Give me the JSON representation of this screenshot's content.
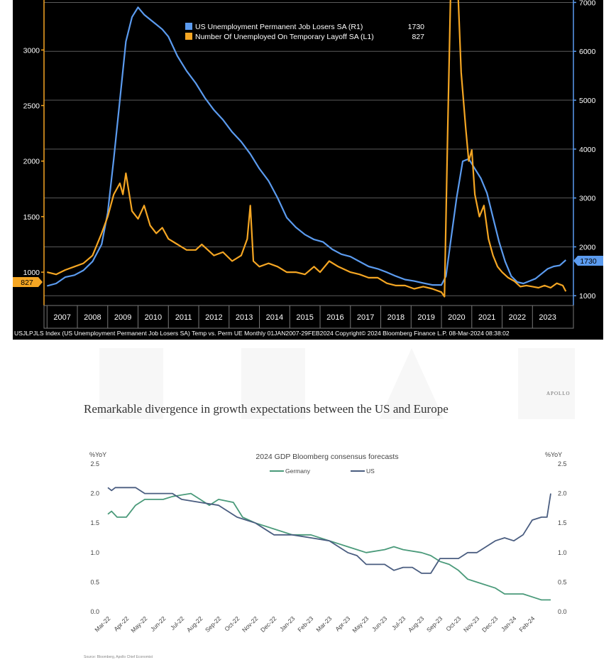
{
  "chart_data": [
    {
      "type": "line",
      "title": "",
      "legend": {
        "placement": "top-center",
        "entries": [
          {
            "label": "US Unemployment Permanent Job Losers SA (R1)",
            "last": "1730",
            "color": "#5b9bef"
          },
          {
            "label": "Number Of Unemployed On Temporary Layoff SA  (L1)",
            "last": "827",
            "color": "#f5a623"
          }
        ]
      },
      "left_axis": {
        "min": 700,
        "max": 3450,
        "ticks": [
          1000,
          1500,
          2000,
          2500,
          3000
        ]
      },
      "right_axis": {
        "min": 800,
        "max": 7050,
        "ticks": [
          1000,
          2000,
          3000,
          4000,
          5000,
          6000,
          7000
        ]
      },
      "x_axis": {
        "min": 2006.9,
        "max": 2024.35,
        "ticks": [
          "2007",
          "2008",
          "2009",
          "2010",
          "2011",
          "2012",
          "2013",
          "2014",
          "2015",
          "2016",
          "2017",
          "2018",
          "2019",
          "2020",
          "2021",
          "2022",
          "2023"
        ]
      },
      "grid": true,
      "last_value_labels": {
        "left": "827",
        "right": "1730"
      },
      "footer": "USJLPJLS Index (US Unemployment Permanent Job Losers SA) Temp vs. Perm UE  Monthly 01JAN2007-29FEB2024  Copyright© 2024 Bloomberg Finance L.P.  08-Mar-2024 08:38:02",
      "series": [
        {
          "name": "US Unemployment Permanent Job Losers SA (R1)",
          "axis": "right",
          "color": "#5b9bef",
          "points": [
            [
              2007.0,
              1200
            ],
            [
              2007.3,
              1250
            ],
            [
              2007.6,
              1380
            ],
            [
              2007.9,
              1420
            ],
            [
              2008.2,
              1520
            ],
            [
              2008.5,
              1700
            ],
            [
              2008.8,
              2050
            ],
            [
              2009.0,
              2700
            ],
            [
              2009.2,
              3800
            ],
            [
              2009.4,
              5000
            ],
            [
              2009.6,
              6200
            ],
            [
              2009.8,
              6700
            ],
            [
              2010.0,
              6900
            ],
            [
              2010.2,
              6750
            ],
            [
              2010.4,
              6650
            ],
            [
              2010.6,
              6550
            ],
            [
              2010.8,
              6450
            ],
            [
              2011.0,
              6300
            ],
            [
              2011.3,
              5900
            ],
            [
              2011.6,
              5600
            ],
            [
              2011.9,
              5350
            ],
            [
              2012.2,
              5050
            ],
            [
              2012.5,
              4800
            ],
            [
              2012.8,
              4600
            ],
            [
              2013.1,
              4350
            ],
            [
              2013.4,
              4150
            ],
            [
              2013.7,
              3900
            ],
            [
              2014.0,
              3600
            ],
            [
              2014.3,
              3350
            ],
            [
              2014.6,
              3000
            ],
            [
              2014.9,
              2600
            ],
            [
              2015.2,
              2400
            ],
            [
              2015.5,
              2250
            ],
            [
              2015.8,
              2150
            ],
            [
              2016.1,
              2100
            ],
            [
              2016.4,
              1950
            ],
            [
              2016.7,
              1850
            ],
            [
              2017.0,
              1800
            ],
            [
              2017.3,
              1700
            ],
            [
              2017.6,
              1600
            ],
            [
              2017.9,
              1550
            ],
            [
              2018.2,
              1480
            ],
            [
              2018.5,
              1400
            ],
            [
              2018.8,
              1330
            ],
            [
              2019.1,
              1300
            ],
            [
              2019.4,
              1260
            ],
            [
              2019.7,
              1220
            ],
            [
              2020.0,
              1220
            ],
            [
              2020.15,
              1400
            ],
            [
              2020.3,
              2100
            ],
            [
              2020.5,
              3000
            ],
            [
              2020.7,
              3750
            ],
            [
              2020.9,
              3800
            ],
            [
              2021.1,
              3600
            ],
            [
              2021.3,
              3400
            ],
            [
              2021.5,
              3100
            ],
            [
              2021.7,
              2600
            ],
            [
              2021.9,
              2100
            ],
            [
              2022.1,
              1700
            ],
            [
              2022.3,
              1400
            ],
            [
              2022.5,
              1280
            ],
            [
              2022.7,
              1250
            ],
            [
              2022.9,
              1300
            ],
            [
              2023.1,
              1350
            ],
            [
              2023.3,
              1450
            ],
            [
              2023.5,
              1550
            ],
            [
              2023.7,
              1600
            ],
            [
              2023.9,
              1620
            ],
            [
              2024.1,
              1730
            ]
          ]
        },
        {
          "name": "Number Of Unemployed On Temporary Layoff SA  (L1)",
          "axis": "left",
          "color": "#f5a623",
          "points": [
            [
              2007.0,
              1000
            ],
            [
              2007.3,
              980
            ],
            [
              2007.6,
              1020
            ],
            [
              2007.9,
              1050
            ],
            [
              2008.2,
              1080
            ],
            [
              2008.5,
              1150
            ],
            [
              2008.8,
              1350
            ],
            [
              2009.0,
              1500
            ],
            [
              2009.2,
              1700
            ],
            [
              2009.4,
              1800
            ],
            [
              2009.5,
              1700
            ],
            [
              2009.6,
              1890
            ],
            [
              2009.8,
              1550
            ],
            [
              2010.0,
              1480
            ],
            [
              2010.2,
              1600
            ],
            [
              2010.4,
              1420
            ],
            [
              2010.6,
              1350
            ],
            [
              2010.8,
              1400
            ],
            [
              2011.0,
              1300
            ],
            [
              2011.3,
              1250
            ],
            [
              2011.6,
              1200
            ],
            [
              2011.9,
              1200
            ],
            [
              2012.1,
              1250
            ],
            [
              2012.3,
              1200
            ],
            [
              2012.5,
              1150
            ],
            [
              2012.8,
              1180
            ],
            [
              2013.1,
              1100
            ],
            [
              2013.4,
              1150
            ],
            [
              2013.6,
              1300
            ],
            [
              2013.7,
              1600
            ],
            [
              2013.8,
              1100
            ],
            [
              2014.0,
              1050
            ],
            [
              2014.3,
              1080
            ],
            [
              2014.6,
              1050
            ],
            [
              2014.9,
              1000
            ],
            [
              2015.2,
              1000
            ],
            [
              2015.5,
              980
            ],
            [
              2015.8,
              1050
            ],
            [
              2016.0,
              1000
            ],
            [
              2016.3,
              1100
            ],
            [
              2016.6,
              1050
            ],
            [
              2017.0,
              1000
            ],
            [
              2017.3,
              980
            ],
            [
              2017.6,
              950
            ],
            [
              2017.9,
              950
            ],
            [
              2018.2,
              900
            ],
            [
              2018.5,
              880
            ],
            [
              2018.8,
              880
            ],
            [
              2019.1,
              850
            ],
            [
              2019.4,
              870
            ],
            [
              2019.7,
              850
            ],
            [
              2020.0,
              820
            ],
            [
              2020.1,
              780
            ],
            [
              2020.2,
              2200
            ],
            [
              2020.3,
              3500
            ],
            [
              2020.45,
              3500
            ],
            [
              2020.55,
              3500
            ],
            [
              2020.65,
              2800
            ],
            [
              2020.8,
              2300
            ],
            [
              2020.9,
              2000
            ],
            [
              2021.0,
              2100
            ],
            [
              2021.1,
              1700
            ],
            [
              2021.25,
              1500
            ],
            [
              2021.4,
              1600
            ],
            [
              2021.55,
              1300
            ],
            [
              2021.7,
              1150
            ],
            [
              2021.85,
              1050
            ],
            [
              2022.0,
              1000
            ],
            [
              2022.2,
              950
            ],
            [
              2022.4,
              920
            ],
            [
              2022.6,
              870
            ],
            [
              2022.8,
              880
            ],
            [
              2023.0,
              870
            ],
            [
              2023.2,
              860
            ],
            [
              2023.4,
              880
            ],
            [
              2023.6,
              860
            ],
            [
              2023.8,
              900
            ],
            [
              2024.0,
              880
            ],
            [
              2024.1,
              827
            ]
          ]
        }
      ]
    },
    {
      "type": "line",
      "title": "Remarkable divergence in growth expectations between the US and Europe",
      "subtitle": "2024 GDP Bloomberg consensus forecasts",
      "brand": "APOLLO",
      "ylabel_left": "%YoY",
      "ylabel_right": "%YoY",
      "ylim": [
        0,
        2.5
      ],
      "yticks": [
        "0.0",
        "0.5",
        "1.0",
        "1.5",
        "2.0",
        "2.5"
      ],
      "grid": false,
      "legend": {
        "placement": "top-center"
      },
      "xlim": [
        0,
        24
      ],
      "categories": [
        "Mar-22",
        "Apr-22",
        "May-22",
        "Jun-22",
        "Jul-22",
        "Aug-22",
        "Sep-22",
        "Oct-22",
        "Nov-22",
        "Dec-22",
        "Jan-23",
        "Feb-23",
        "Mar-23",
        "Apr-23",
        "May-23",
        "Jun-23",
        "Jul-23",
        "Aug-23",
        "Sep-23",
        "Oct-23",
        "Nov-23",
        "Dec-23",
        "Jan-24",
        "Feb-24"
      ],
      "source": "Source: Bloomberg, Apollo Chief Economist",
      "series": [
        {
          "name": "Germany",
          "color": "#4a9a7a",
          "points": [
            [
              0,
              1.65
            ],
            [
              0.2,
              1.7
            ],
            [
              0.5,
              1.6
            ],
            [
              1.0,
              1.6
            ],
            [
              1.5,
              1.8
            ],
            [
              2.0,
              1.9
            ],
            [
              3.0,
              1.9
            ],
            [
              3.5,
              1.95
            ],
            [
              4.5,
              2.0
            ],
            [
              5.0,
              1.9
            ],
            [
              5.5,
              1.8
            ],
            [
              6.0,
              1.9
            ],
            [
              6.8,
              1.85
            ],
            [
              7.3,
              1.6
            ],
            [
              8.0,
              1.5
            ],
            [
              9.0,
              1.4
            ],
            [
              10.0,
              1.3
            ],
            [
              11.0,
              1.3
            ],
            [
              12.0,
              1.2
            ],
            [
              12.5,
              1.15
            ],
            [
              13.0,
              1.1
            ],
            [
              13.5,
              1.05
            ],
            [
              14.0,
              1.0
            ],
            [
              15.0,
              1.05
            ],
            [
              15.5,
              1.1
            ],
            [
              16.0,
              1.05
            ],
            [
              17.0,
              1.0
            ],
            [
              17.5,
              0.95
            ],
            [
              18.0,
              0.85
            ],
            [
              18.5,
              0.8
            ],
            [
              19.0,
              0.7
            ],
            [
              19.5,
              0.55
            ],
            [
              20.0,
              0.5
            ],
            [
              21.0,
              0.4
            ],
            [
              21.5,
              0.3
            ],
            [
              22.5,
              0.3
            ],
            [
              23.0,
              0.25
            ],
            [
              23.5,
              0.2
            ],
            [
              24.0,
              0.2
            ]
          ]
        },
        {
          "name": "US",
          "color": "#4a5d80",
          "points": [
            [
              0,
              2.1
            ],
            [
              0.2,
              2.05
            ],
            [
              0.4,
              2.1
            ],
            [
              1.5,
              2.1
            ],
            [
              2.0,
              2.0
            ],
            [
              3.5,
              2.0
            ],
            [
              4.0,
              1.9
            ],
            [
              5.0,
              1.85
            ],
            [
              6.0,
              1.8
            ],
            [
              7.0,
              1.6
            ],
            [
              8.0,
              1.5
            ],
            [
              9.0,
              1.3
            ],
            [
              10.0,
              1.3
            ],
            [
              11.0,
              1.25
            ],
            [
              12.0,
              1.2
            ],
            [
              12.5,
              1.1
            ],
            [
              13.0,
              1.0
            ],
            [
              13.5,
              0.95
            ],
            [
              14.0,
              0.8
            ],
            [
              15.0,
              0.8
            ],
            [
              15.5,
              0.7
            ],
            [
              16.0,
              0.75
            ],
            [
              16.5,
              0.75
            ],
            [
              17.0,
              0.65
            ],
            [
              17.5,
              0.65
            ],
            [
              18.0,
              0.9
            ],
            [
              19.0,
              0.9
            ],
            [
              19.5,
              1.0
            ],
            [
              20.0,
              1.0
            ],
            [
              20.5,
              1.1
            ],
            [
              21.0,
              1.2
            ],
            [
              21.5,
              1.25
            ],
            [
              22.0,
              1.2
            ],
            [
              22.5,
              1.3
            ],
            [
              23.0,
              1.55
            ],
            [
              23.5,
              1.6
            ],
            [
              23.8,
              1.6
            ],
            [
              24.0,
              2.0
            ]
          ]
        }
      ]
    }
  ]
}
